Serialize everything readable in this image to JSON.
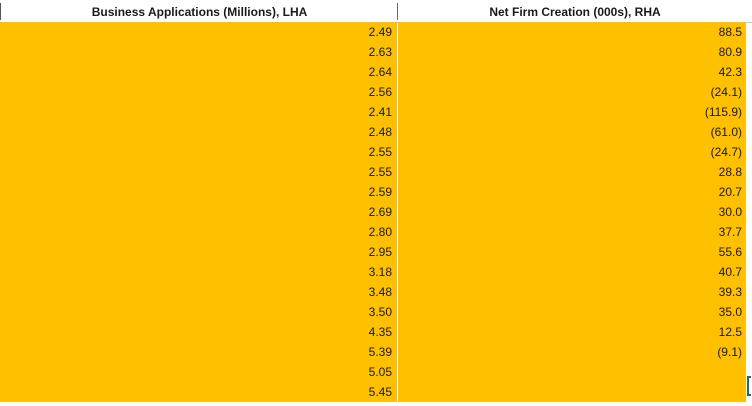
{
  "sheet": {
    "headers": {
      "business_applications": "Business Applications (Millions), LHA",
      "net_firm_creation": "Net Firm Creation (000s), RHA"
    },
    "business_applications": [
      "2.49",
      "2.63",
      "2.64",
      "2.56",
      "2.41",
      "2.48",
      "2.55",
      "2.55",
      "2.59",
      "2.69",
      "2.80",
      "2.95",
      "3.18",
      "3.48",
      "3.50",
      "4.35",
      "5.39",
      "5.05",
      "5.45"
    ],
    "net_firm_creation": [
      "88.5",
      "80.9",
      "42.3",
      "(24.1)",
      "(115.9)",
      "(61.0)",
      "(24.7)",
      "28.8",
      "20.7",
      "30.0",
      "37.7",
      "55.6",
      "40.7",
      "39.3",
      "35.0",
      "12.5",
      "(9.1)",
      "",
      ""
    ],
    "colors": {
      "cell_fill": "#ffc000",
      "selection_border": "#217346",
      "text": "#1a1a1a"
    }
  }
}
